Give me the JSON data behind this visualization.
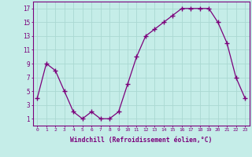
{
  "x": [
    0,
    1,
    2,
    3,
    4,
    5,
    6,
    7,
    8,
    9,
    10,
    11,
    12,
    13,
    14,
    15,
    16,
    17,
    18,
    19,
    20,
    21,
    22,
    23
  ],
  "y": [
    4,
    9,
    8,
    5,
    2,
    1,
    2,
    1,
    1,
    2,
    6,
    10,
    13,
    14,
    15,
    16,
    17,
    17,
    17,
    17,
    15,
    12,
    7,
    4
  ],
  "line_color": "#7B007B",
  "marker": "+",
  "bg_color": "#C5EDE8",
  "grid_color": "#AAD8D2",
  "xlabel": "Windchill (Refroidissement éolien,°C)",
  "ylabel_ticks": [
    1,
    3,
    5,
    7,
    9,
    11,
    13,
    15,
    17
  ],
  "xtick_labels": [
    "0",
    "1",
    "2",
    "3",
    "4",
    "5",
    "6",
    "7",
    "8",
    "9",
    "10",
    "11",
    "12",
    "13",
    "14",
    "15",
    "16",
    "17",
    "18",
    "19",
    "20",
    "21",
    "22",
    "23"
  ],
  "ylim": [
    0,
    18
  ],
  "xlim": [
    -0.5,
    23.5
  ],
  "axis_color": "#7B007B",
  "tick_color": "#7B007B",
  "label_color": "#7B007B"
}
